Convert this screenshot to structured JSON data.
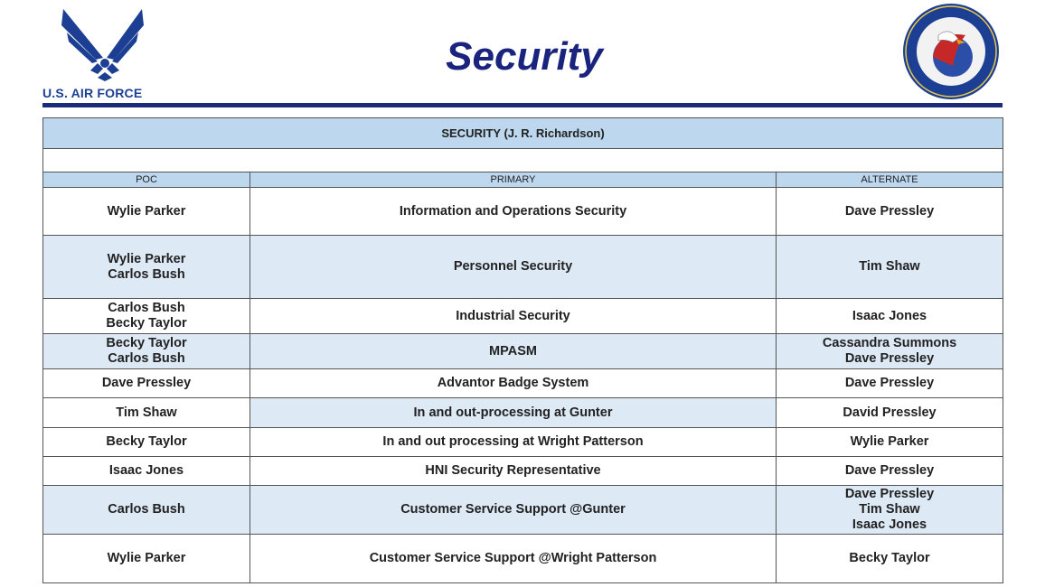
{
  "header": {
    "title": "Security",
    "logo_text": "U.S. AIR FORCE",
    "seal_text": {
      "outer_top": "AIR FORCE LIFE CYCLE MANAGEMENT CENTER",
      "outer_bottom": "BUSINESS AND ENTERPRISE SYSTEMS",
      "top": "OPERATE",
      "left": "INNOVATE",
      "right": "INTEGRATE"
    }
  },
  "colors": {
    "navy": "#1a237e",
    "header_fill": "#bdd7ee",
    "row_shade": "#dde9f5"
  },
  "table": {
    "title": "SECURITY (J. R. Richardson)",
    "columns": [
      "POC",
      "PRIMARY",
      "ALTERNATE"
    ],
    "rows": [
      {
        "poc": [
          "Wylie Parker"
        ],
        "primary": "Information and Operations Security",
        "alternate": [
          "Dave Pressley"
        ],
        "shade": "none"
      },
      {
        "poc": [
          "Wylie Parker",
          "Carlos Bush"
        ],
        "primary": "Personnel Security",
        "alternate": [
          "Tim Shaw"
        ],
        "shade": "row"
      },
      {
        "poc": [
          "Carlos Bush",
          "Becky Taylor"
        ],
        "primary": "Industrial Security",
        "alternate": [
          "Isaac Jones"
        ],
        "shade": "none"
      },
      {
        "poc": [
          "Becky Taylor",
          "Carlos Bush"
        ],
        "primary": "MPASM",
        "alternate": [
          "Cassandra Summons",
          "Dave Pressley"
        ],
        "shade": "row"
      },
      {
        "poc": [
          "Dave Pressley"
        ],
        "primary": "Advantor Badge System",
        "alternate": [
          "Dave Pressley"
        ],
        "shade": "none"
      },
      {
        "poc": [
          "Tim Shaw"
        ],
        "primary": "In and out-processing at Gunter",
        "alternate": [
          "David Pressley"
        ],
        "shade": "primary"
      },
      {
        "poc": [
          "Becky Taylor"
        ],
        "primary": "In and out processing at Wright Patterson",
        "alternate": [
          "Wylie Parker"
        ],
        "shade": "none"
      },
      {
        "poc": [
          "Isaac Jones"
        ],
        "primary": "HNI Security Representative",
        "alternate": [
          "Dave Pressley"
        ],
        "shade": "none"
      },
      {
        "poc": [
          "Carlos Bush"
        ],
        "primary": "Customer Service Support @Gunter",
        "alternate": [
          "Dave Pressley",
          "Tim Shaw",
          "Isaac Jones"
        ],
        "shade": "row"
      },
      {
        "poc": [
          "Wylie Parker"
        ],
        "primary": "Customer Service Support @Wright Patterson",
        "alternate": [
          "Becky Taylor"
        ],
        "shade": "none"
      }
    ]
  }
}
